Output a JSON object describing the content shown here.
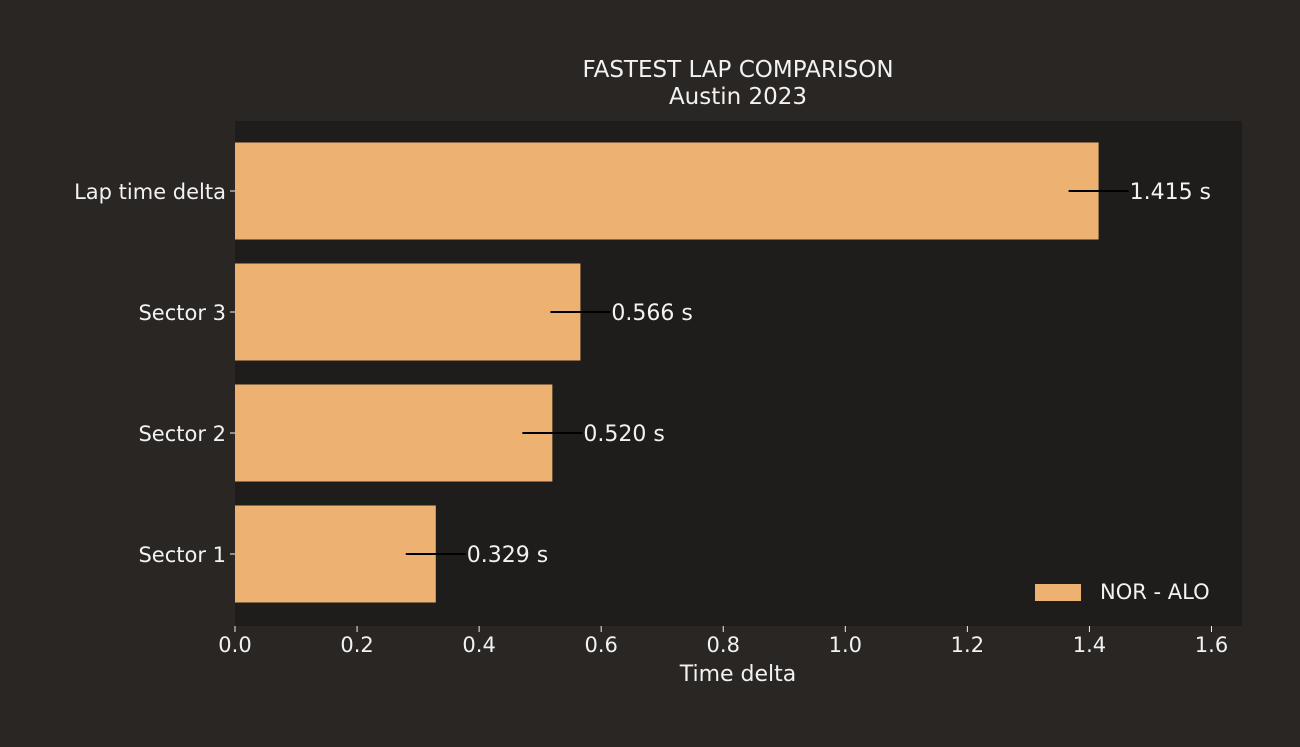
{
  "chart_data": {
    "type": "bar",
    "orientation": "horizontal",
    "title": "FASTEST LAP COMPARISON",
    "subtitle": "Austin 2023",
    "xlabel": "Time delta",
    "ylabel": "",
    "xlim": [
      0,
      1.65
    ],
    "xticks": [
      "0.0",
      "0.2",
      "0.4",
      "0.6",
      "0.8",
      "1.0",
      "1.2",
      "1.4",
      "1.6"
    ],
    "categories": [
      "Lap time delta",
      "Sector 3",
      "Sector 2",
      "Sector 1"
    ],
    "series": [
      {
        "name": "NOR - ALO",
        "values": [
          1.415,
          0.566,
          0.52,
          0.329
        ],
        "labels": [
          "1.415 s",
          "0.566 s",
          "0.520 s",
          "0.329 s"
        ]
      }
    ],
    "grid": false,
    "legend_position": "lower-right"
  },
  "colors": {
    "background": "#292624",
    "plot_area": "#1e1d1b",
    "bar": "#edb271",
    "text": "#f2f2f2",
    "marker": "#000000"
  }
}
